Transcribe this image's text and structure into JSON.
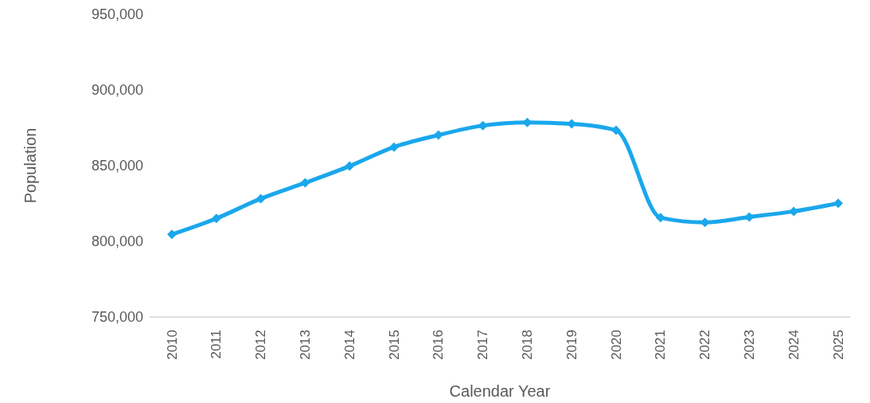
{
  "chart_data": {
    "type": "line",
    "xlabel": "Calendar Year",
    "ylabel": "Population",
    "categories": [
      "2010",
      "2011",
      "2012",
      "2013",
      "2014",
      "2015",
      "2016",
      "2017",
      "2018",
      "2019",
      "2020",
      "2021",
      "2022",
      "2023",
      "2024",
      "2025"
    ],
    "series": [
      {
        "color": "#1aa7ec",
        "values": [
          804600,
          815100,
          828200,
          838700,
          849700,
          862300,
          870200,
          876500,
          878600,
          877600,
          873400,
          815600,
          812500,
          816100,
          819800,
          825100
        ]
      }
    ],
    "ylim": [
      750000,
      950000
    ],
    "yticks": [
      {
        "value": 750000,
        "label": "750,000"
      },
      {
        "value": 800000,
        "label": "800,000"
      },
      {
        "value": 850000,
        "label": "850,000"
      },
      {
        "value": 900000,
        "label": "900,000"
      },
      {
        "value": 950000,
        "label": "950,000"
      }
    ],
    "grid": false,
    "legend": false,
    "marker": "diamond",
    "line_style": "solid"
  }
}
